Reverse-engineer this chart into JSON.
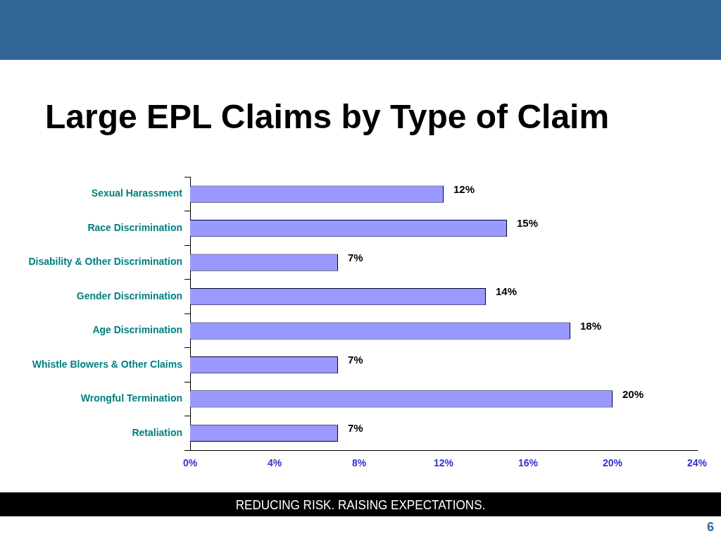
{
  "chart_data": {
    "type": "bar",
    "orientation": "horizontal",
    "title": "Large EPL Claims by Type of Claim",
    "categories": [
      "Sexual Harassment",
      "Race Discrimination",
      "Disability & Other Discrimination",
      "Gender Discrimination",
      "Age Discrimination",
      "Whistle Blowers & Other Claims",
      "Wrongful Termination",
      "Retaliation"
    ],
    "values": [
      12,
      15,
      7,
      14,
      18,
      7,
      20,
      7
    ],
    "value_labels": [
      "12%",
      "15%",
      "7%",
      "14%",
      "18%",
      "7%",
      "20%",
      "7%"
    ],
    "color": "#9999ff",
    "xlim": [
      0,
      24
    ],
    "xticks": [
      {
        "value": 0,
        "label": "0%"
      },
      {
        "value": 4,
        "label": "4%"
      },
      {
        "value": 8,
        "label": "8%"
      },
      {
        "value": 12,
        "label": "12%"
      },
      {
        "value": 16,
        "label": "16%"
      },
      {
        "value": 20,
        "label": "20%"
      },
      {
        "value": 24,
        "label": "24%"
      }
    ],
    "grid": false,
    "legend": false,
    "annotations": [
      "REDUCING RISK.  RAISING EXPECTATIONS.",
      "6"
    ]
  }
}
